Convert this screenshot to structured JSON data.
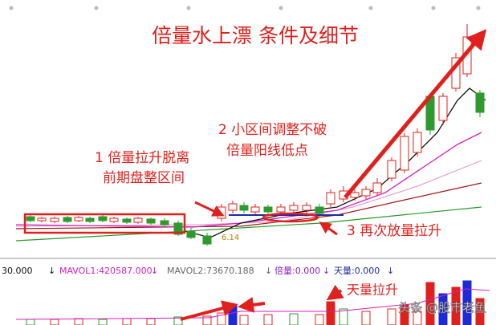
{
  "title": "倍量水上漂  条件及细节",
  "annotations": [
    {
      "lines": [
        "1 倍量拉升脱离",
        "前期盘整区间"
      ]
    },
    {
      "lines": [
        "2 小区间调整不破",
        "倍量阳线低点"
      ]
    },
    {
      "lines": [
        "3 再次放量拉升"
      ]
    }
  ],
  "price_label": "6.14",
  "indicator": {
    "items": [
      "30.000",
      "↓",
      "MAVOL1:420587.000",
      "↓",
      "MAVOL2:73670.188",
      "↓",
      "倍量:0.000",
      "↓",
      "天量:0.000",
      "↓"
    ]
  },
  "volume_annotation": "天量拉升",
  "watermark": "头条 @股市老鱼"
}
